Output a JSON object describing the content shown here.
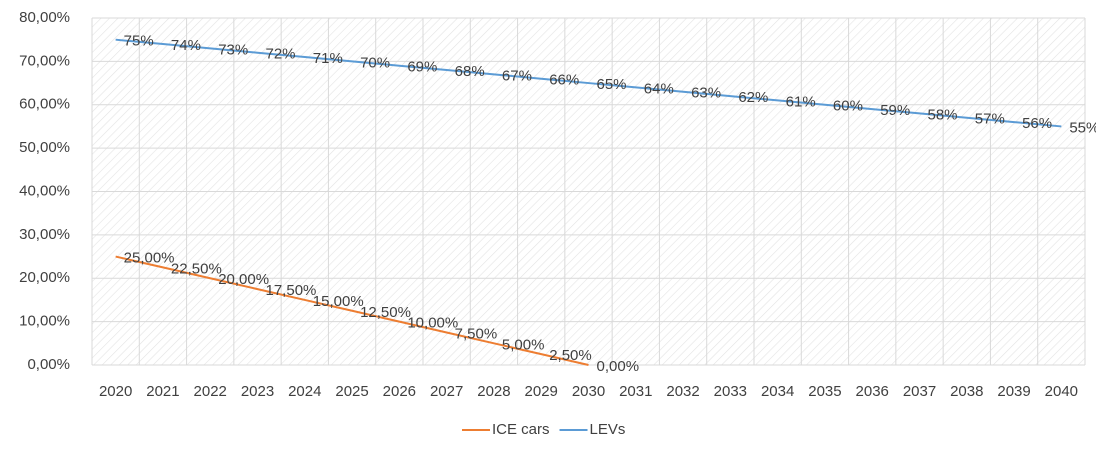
{
  "chart_data": {
    "type": "line",
    "categories": [
      "2020",
      "2021",
      "2022",
      "2023",
      "2024",
      "2025",
      "2026",
      "2027",
      "2028",
      "2029",
      "2030",
      "2031",
      "2032",
      "2033",
      "2034",
      "2035",
      "2036",
      "2037",
      "2038",
      "2039",
      "2040"
    ],
    "series": [
      {
        "name": "ICE cars",
        "color": "#ed7d31",
        "values": [
          25,
          22.5,
          20,
          17.5,
          15,
          12.5,
          10,
          7.5,
          5,
          2.5,
          0,
          null,
          null,
          null,
          null,
          null,
          null,
          null,
          null,
          null,
          null
        ],
        "value_labels": [
          "25,00%",
          "22,50%",
          "20,00%",
          "17,50%",
          "15,00%",
          "12,50%",
          "10,00%",
          "7,50%",
          "5,00%",
          "2,50%",
          "0,00%",
          null,
          null,
          null,
          null,
          null,
          null,
          null,
          null,
          null,
          null
        ]
      },
      {
        "name": "LEVs",
        "color": "#5b9bd5",
        "values": [
          75,
          74,
          73,
          72,
          71,
          70,
          69,
          68,
          67,
          66,
          65,
          64,
          63,
          62,
          61,
          60,
          59,
          58,
          57,
          56,
          55
        ],
        "value_labels": [
          "75%",
          "74%",
          "73%",
          "72%",
          "71%",
          "70%",
          "69%",
          "68%",
          "67%",
          "66%",
          "65%",
          "64%",
          "63%",
          "62%",
          "61%",
          "60%",
          "59%",
          "58%",
          "57%",
          "56%",
          "55%"
        ]
      }
    ],
    "ylim": [
      0,
      80
    ],
    "yticks": [
      {
        "value": 0,
        "label": "0,00%"
      },
      {
        "value": 10,
        "label": "10,00%"
      },
      {
        "value": 20,
        "label": "20,00%"
      },
      {
        "value": 30,
        "label": "30,00%"
      },
      {
        "value": 40,
        "label": "40,00%"
      },
      {
        "value": 50,
        "label": "50,00%"
      },
      {
        "value": 60,
        "label": "60,00%"
      },
      {
        "value": 70,
        "label": "70,00%"
      },
      {
        "value": 80,
        "label": "80,00%"
      }
    ],
    "grid": true,
    "legend": "bottom"
  }
}
